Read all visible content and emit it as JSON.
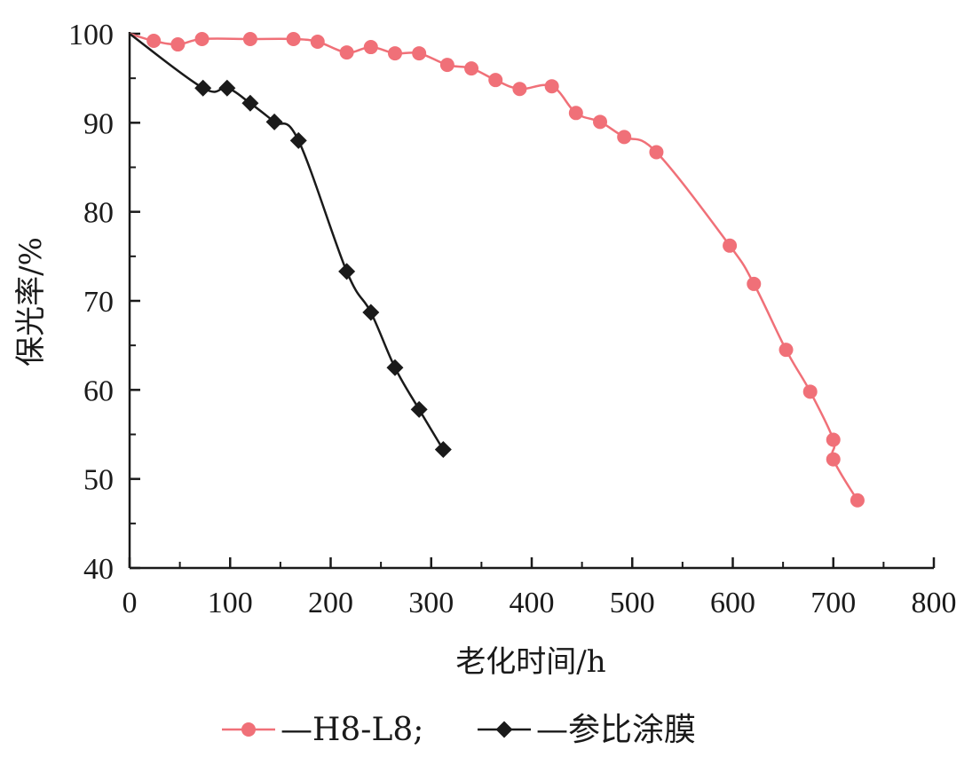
{
  "chart_data": {
    "type": "line",
    "title": "",
    "xlabel": "老化时间/h",
    "ylabel": "保光率/%",
    "xlim": [
      0,
      800
    ],
    "ylim": [
      40,
      100
    ],
    "xticks": [
      0,
      100,
      200,
      300,
      400,
      500,
      600,
      700,
      800
    ],
    "yticks": [
      40,
      50,
      60,
      70,
      80,
      90,
      100
    ],
    "grid": false,
    "legend_position": "bottom",
    "series": [
      {
        "name": "—H8-L8;",
        "marker": "circle",
        "color": "#f07078",
        "points": [
          [
            0,
            100
          ],
          [
            24,
            99.2
          ],
          [
            48,
            98.8
          ],
          [
            72,
            99.4
          ],
          [
            120,
            99.4
          ],
          [
            163,
            99.4
          ],
          [
            187,
            99.1
          ],
          [
            216,
            97.9
          ],
          [
            240,
            98.5
          ],
          [
            264,
            97.8
          ],
          [
            288,
            97.8
          ],
          [
            316,
            96.5
          ],
          [
            340,
            96.1
          ],
          [
            364,
            94.8
          ],
          [
            388,
            93.8
          ],
          [
            420,
            94.1
          ],
          [
            444,
            91.1
          ],
          [
            468,
            90.1
          ],
          [
            492,
            88.4
          ],
          [
            524,
            86.7
          ],
          [
            597,
            76.2
          ],
          [
            621,
            71.9
          ],
          [
            653,
            64.5
          ],
          [
            677,
            59.8
          ],
          [
            700,
            54.4
          ],
          [
            700,
            52.2
          ],
          [
            724,
            47.6
          ]
        ]
      },
      {
        "name": "—参比涂膜",
        "marker": "diamond",
        "color": "#1a1a1a",
        "points": [
          [
            0,
            100
          ],
          [
            73,
            93.9
          ],
          [
            97,
            93.9
          ],
          [
            120,
            92.2
          ],
          [
            144,
            90.1
          ],
          [
            168,
            88.0
          ],
          [
            216,
            73.3
          ],
          [
            240,
            68.7
          ],
          [
            264,
            62.5
          ],
          [
            288,
            57.8
          ],
          [
            312,
            53.3
          ]
        ]
      }
    ]
  }
}
